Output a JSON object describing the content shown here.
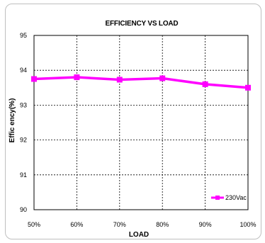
{
  "chart_data": {
    "type": "line",
    "title": "EFFICIENCY VS  LOAD",
    "xlabel": "LOAD",
    "ylabel": "Effic ency(%)",
    "categories": [
      "50%",
      "60%",
      "70%",
      "80%",
      "90%",
      "100%"
    ],
    "yticks": [
      "90",
      "91",
      "92",
      "93",
      "94",
      "95"
    ],
    "ylim": [
      90,
      95
    ],
    "grid": true,
    "legend_position": "bottom-right",
    "series": [
      {
        "name": "230Vac",
        "color": "#ff00ff",
        "values": [
          93.75,
          93.8,
          93.73,
          93.77,
          93.6,
          93.5
        ]
      }
    ]
  }
}
